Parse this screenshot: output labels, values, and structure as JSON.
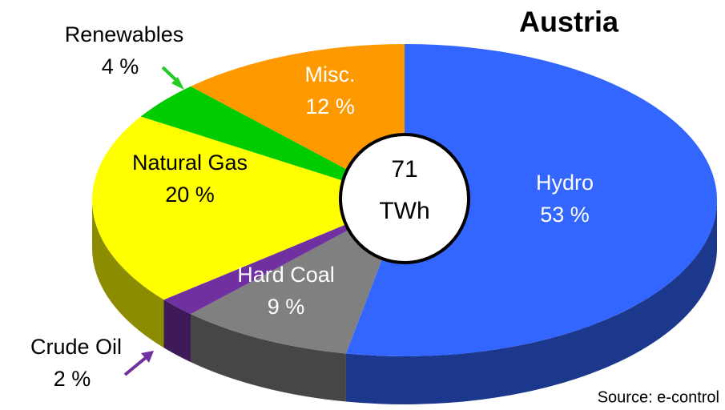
{
  "chart_data": {
    "type": "pie3d",
    "title": "Austria",
    "categories": [
      "Hydro",
      "Hard Coal",
      "Crude Oil",
      "Natural Gas",
      "Renewables",
      "Misc."
    ],
    "values": [
      53,
      9,
      2,
      20,
      4,
      12
    ],
    "value_labels": [
      "53 %",
      "9 %",
      "2 %",
      "20 %",
      "4 %",
      "12 %"
    ],
    "colors": [
      "#3366ff",
      "#808080",
      "#7030a0",
      "#ffff00",
      "#00cc00",
      "#ff9900"
    ],
    "center_label": [
      "71",
      "TWh"
    ],
    "source": "Source: e-control"
  }
}
